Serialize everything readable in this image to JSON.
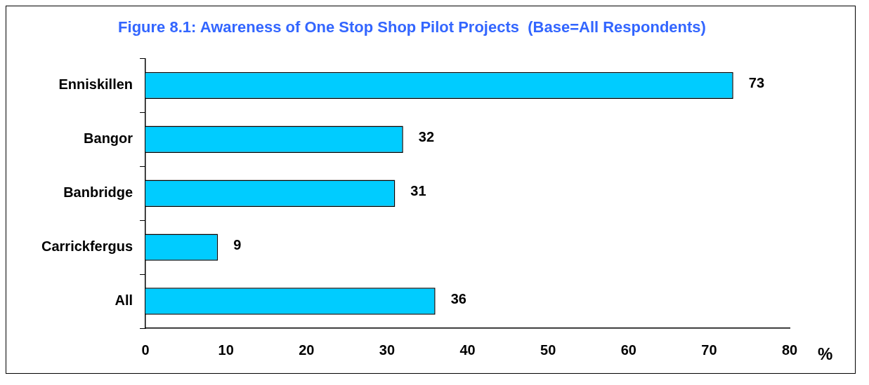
{
  "chart_data": {
    "type": "bar",
    "orientation": "horizontal",
    "title": "Figure 8.1: Awareness of One Stop Shop Pilot Projects  (Base=All Respondents)",
    "xlabel": "%",
    "categories": [
      "Enniskillen",
      "Bangor",
      "Banbridge",
      "Carrickfergus",
      "All"
    ],
    "values": [
      73,
      32,
      31,
      9,
      36
    ],
    "color": "#00ccff",
    "xlim": [
      0,
      80
    ],
    "xticks": [
      0,
      10,
      20,
      30,
      40,
      50,
      60,
      70,
      80
    ],
    "grid": false,
    "legend": false,
    "data_labels": true
  }
}
